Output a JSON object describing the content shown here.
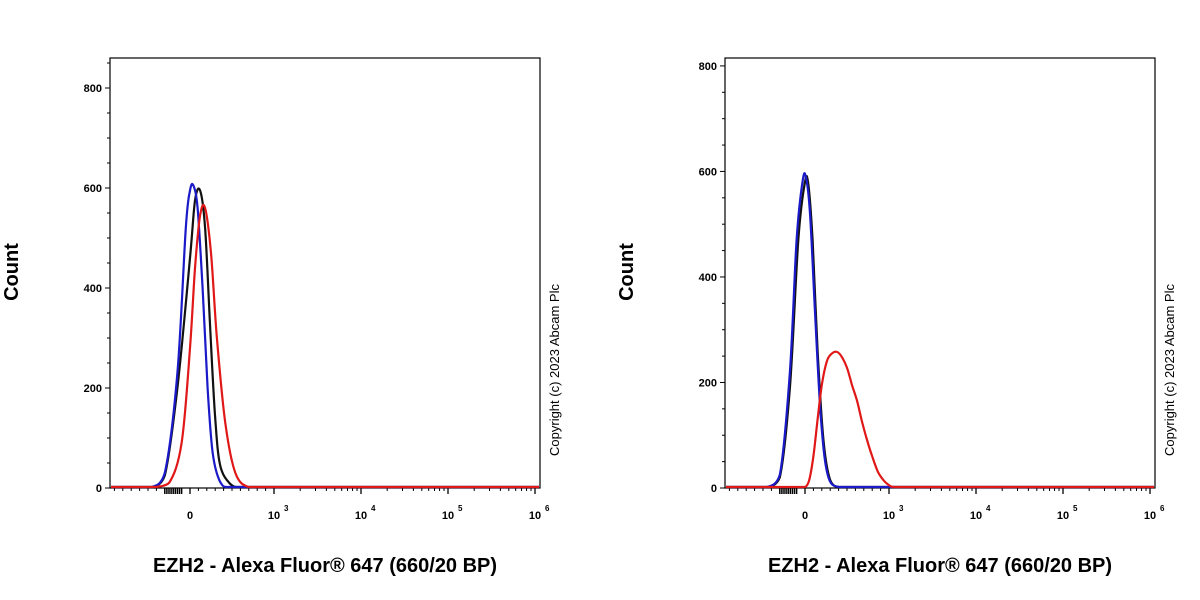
{
  "colors": {
    "black": "#111111",
    "blue": "#1a1ac8",
    "red": "#e01818"
  },
  "chart_data": [
    {
      "type": "line",
      "xlabel": "EZH2 - Alexa Fluor® 647 (660/20 BP)",
      "ylabel": "Count",
      "copyright": "Copyright (c) 2023 Abcam Plc",
      "x_scale": "biexponential",
      "xlim": [
        -800,
        1000000
      ],
      "ylim": [
        0,
        860
      ],
      "x_ticks": [
        {
          "value": 0,
          "base": "0",
          "exp": ""
        },
        {
          "value": 1000,
          "base": "10",
          "exp": "3"
        },
        {
          "value": 10000,
          "base": "10",
          "exp": "4"
        },
        {
          "value": 100000,
          "base": "10",
          "exp": "5"
        },
        {
          "value": 1000000,
          "base": "10",
          "exp": "6"
        }
      ],
      "y_ticks": [
        0,
        200,
        400,
        600,
        800
      ],
      "series": [
        {
          "color": "black",
          "x": [
            -450,
            -300,
            -150,
            0,
            60,
            120,
            180,
            240,
            300,
            360,
            480,
            600,
            900
          ],
          "y": [
            0,
            25,
            200,
            460,
            575,
            595,
            520,
            320,
            140,
            45,
            8,
            0,
            0
          ]
        },
        {
          "color": "blue",
          "x": [
            -450,
            -300,
            -150,
            -50,
            0,
            40,
            90,
            150,
            210,
            270,
            360,
            480,
            900
          ],
          "y": [
            0,
            30,
            230,
            520,
            595,
            605,
            560,
            400,
            200,
            70,
            12,
            0,
            0
          ]
        },
        {
          "color": "red",
          "x": [
            -450,
            -250,
            -100,
            0,
            60,
            120,
            180,
            250,
            320,
            420,
            540,
            700,
            900
          ],
          "y": [
            0,
            10,
            90,
            280,
            440,
            545,
            560,
            470,
            300,
            130,
            30,
            0,
            0
          ]
        }
      ]
    },
    {
      "type": "line",
      "xlabel": "EZH2 - Alexa Fluor® 647 (660/20 BP)",
      "ylabel": "Count",
      "copyright": "Copyright (c) 2023 Abcam Plc",
      "x_scale": "biexponential",
      "xlim": [
        -800,
        1000000
      ],
      "ylim": [
        0,
        815
      ],
      "x_ticks": [
        {
          "value": 0,
          "base": "0",
          "exp": ""
        },
        {
          "value": 1000,
          "base": "10",
          "exp": "3"
        },
        {
          "value": 10000,
          "base": "10",
          "exp": "4"
        },
        {
          "value": 100000,
          "base": "10",
          "exp": "5"
        },
        {
          "value": 1000000,
          "base": "10",
          "exp": "6"
        }
      ],
      "y_ticks": [
        0,
        200,
        400,
        600,
        800
      ],
      "series": [
        {
          "color": "black",
          "x": [
            -450,
            -300,
            -180,
            -80,
            0,
            40,
            90,
            150,
            220,
            300,
            420,
            600
          ],
          "y": [
            0,
            20,
            190,
            470,
            580,
            575,
            470,
            260,
            90,
            15,
            0,
            0
          ]
        },
        {
          "color": "blue",
          "x": [
            -450,
            -300,
            -180,
            -100,
            -30,
            10,
            60,
            120,
            190,
            270,
            400,
            600
          ],
          "y": [
            0,
            25,
            220,
            470,
            580,
            590,
            520,
            330,
            130,
            25,
            0,
            0
          ]
        },
        {
          "color": "red",
          "x": [
            0,
            50,
            100,
            150,
            200,
            260,
            320,
            380,
            440,
            500,
            560,
            620,
            680,
            740,
            800,
            870,
            950,
            1050,
            1150,
            1300
          ],
          "y": [
            0,
            15,
            60,
            130,
            195,
            240,
            255,
            258,
            248,
            228,
            195,
            165,
            125,
            90,
            60,
            30,
            12,
            3,
            0,
            0
          ]
        }
      ]
    }
  ]
}
